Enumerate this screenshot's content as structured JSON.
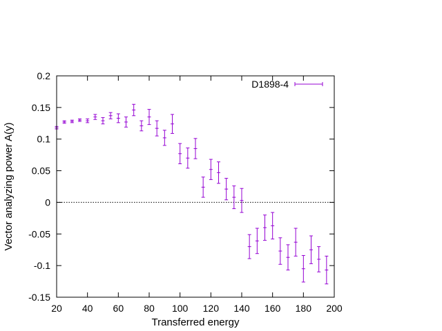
{
  "chart_data": {
    "type": "scatter",
    "title": "",
    "xlabel": "Transferred energy",
    "ylabel": "Vector analyzing power A(y)",
    "xlim": [
      20,
      200
    ],
    "ylim": [
      -0.15,
      0.2
    ],
    "xticks": [
      20,
      40,
      60,
      80,
      100,
      120,
      140,
      160,
      180,
      200
    ],
    "yticks": [
      -0.15,
      -0.1,
      -0.05,
      0,
      0.05,
      0.1,
      0.15,
      0.2
    ],
    "ytick_labels": [
      "-0.15",
      "-0.1",
      "-0.05",
      "0",
      "0.05",
      "0.1",
      "0.15",
      "0.2"
    ],
    "zero_line": true,
    "grid": false,
    "legend_position": "top-right",
    "series": [
      {
        "name": "D1898-4",
        "color": "#9400d3",
        "errorbars": true,
        "points": [
          {
            "x": 20,
            "y": 0.118,
            "err": 0.002
          },
          {
            "x": 25,
            "y": 0.127,
            "err": 0.002
          },
          {
            "x": 30,
            "y": 0.128,
            "err": 0.002
          },
          {
            "x": 35,
            "y": 0.13,
            "err": 0.002
          },
          {
            "x": 40,
            "y": 0.129,
            "err": 0.003
          },
          {
            "x": 45,
            "y": 0.135,
            "err": 0.004
          },
          {
            "x": 50,
            "y": 0.129,
            "err": 0.005
          },
          {
            "x": 55,
            "y": 0.137,
            "err": 0.005
          },
          {
            "x": 60,
            "y": 0.133,
            "err": 0.007
          },
          {
            "x": 65,
            "y": 0.127,
            "err": 0.008
          },
          {
            "x": 70,
            "y": 0.146,
            "err": 0.009
          },
          {
            "x": 75,
            "y": 0.121,
            "err": 0.008
          },
          {
            "x": 80,
            "y": 0.135,
            "err": 0.012
          },
          {
            "x": 85,
            "y": 0.117,
            "err": 0.012
          },
          {
            "x": 90,
            "y": 0.102,
            "err": 0.012
          },
          {
            "x": 95,
            "y": 0.124,
            "err": 0.015
          },
          {
            "x": 100,
            "y": 0.077,
            "err": 0.016
          },
          {
            "x": 105,
            "y": 0.07,
            "err": 0.016
          },
          {
            "x": 110,
            "y": 0.085,
            "err": 0.016
          },
          {
            "x": 115,
            "y": 0.024,
            "err": 0.016
          },
          {
            "x": 120,
            "y": 0.052,
            "err": 0.016
          },
          {
            "x": 125,
            "y": 0.047,
            "err": 0.017
          },
          {
            "x": 130,
            "y": 0.021,
            "err": 0.017
          },
          {
            "x": 135,
            "y": 0.008,
            "err": 0.018
          },
          {
            "x": 140,
            "y": 0.003,
            "err": 0.019
          },
          {
            "x": 145,
            "y": -0.07,
            "err": 0.019
          },
          {
            "x": 150,
            "y": -0.061,
            "err": 0.02
          },
          {
            "x": 155,
            "y": -0.04,
            "err": 0.02
          },
          {
            "x": 160,
            "y": -0.037,
            "err": 0.021
          },
          {
            "x": 165,
            "y": -0.077,
            "err": 0.021
          },
          {
            "x": 170,
            "y": -0.087,
            "err": 0.02
          },
          {
            "x": 175,
            "y": -0.063,
            "err": 0.022
          },
          {
            "x": 180,
            "y": -0.105,
            "err": 0.021
          },
          {
            "x": 185,
            "y": -0.075,
            "err": 0.022
          },
          {
            "x": 190,
            "y": -0.09,
            "err": 0.02
          },
          {
            "x": 195,
            "y": -0.107,
            "err": 0.022
          }
        ]
      }
    ]
  }
}
